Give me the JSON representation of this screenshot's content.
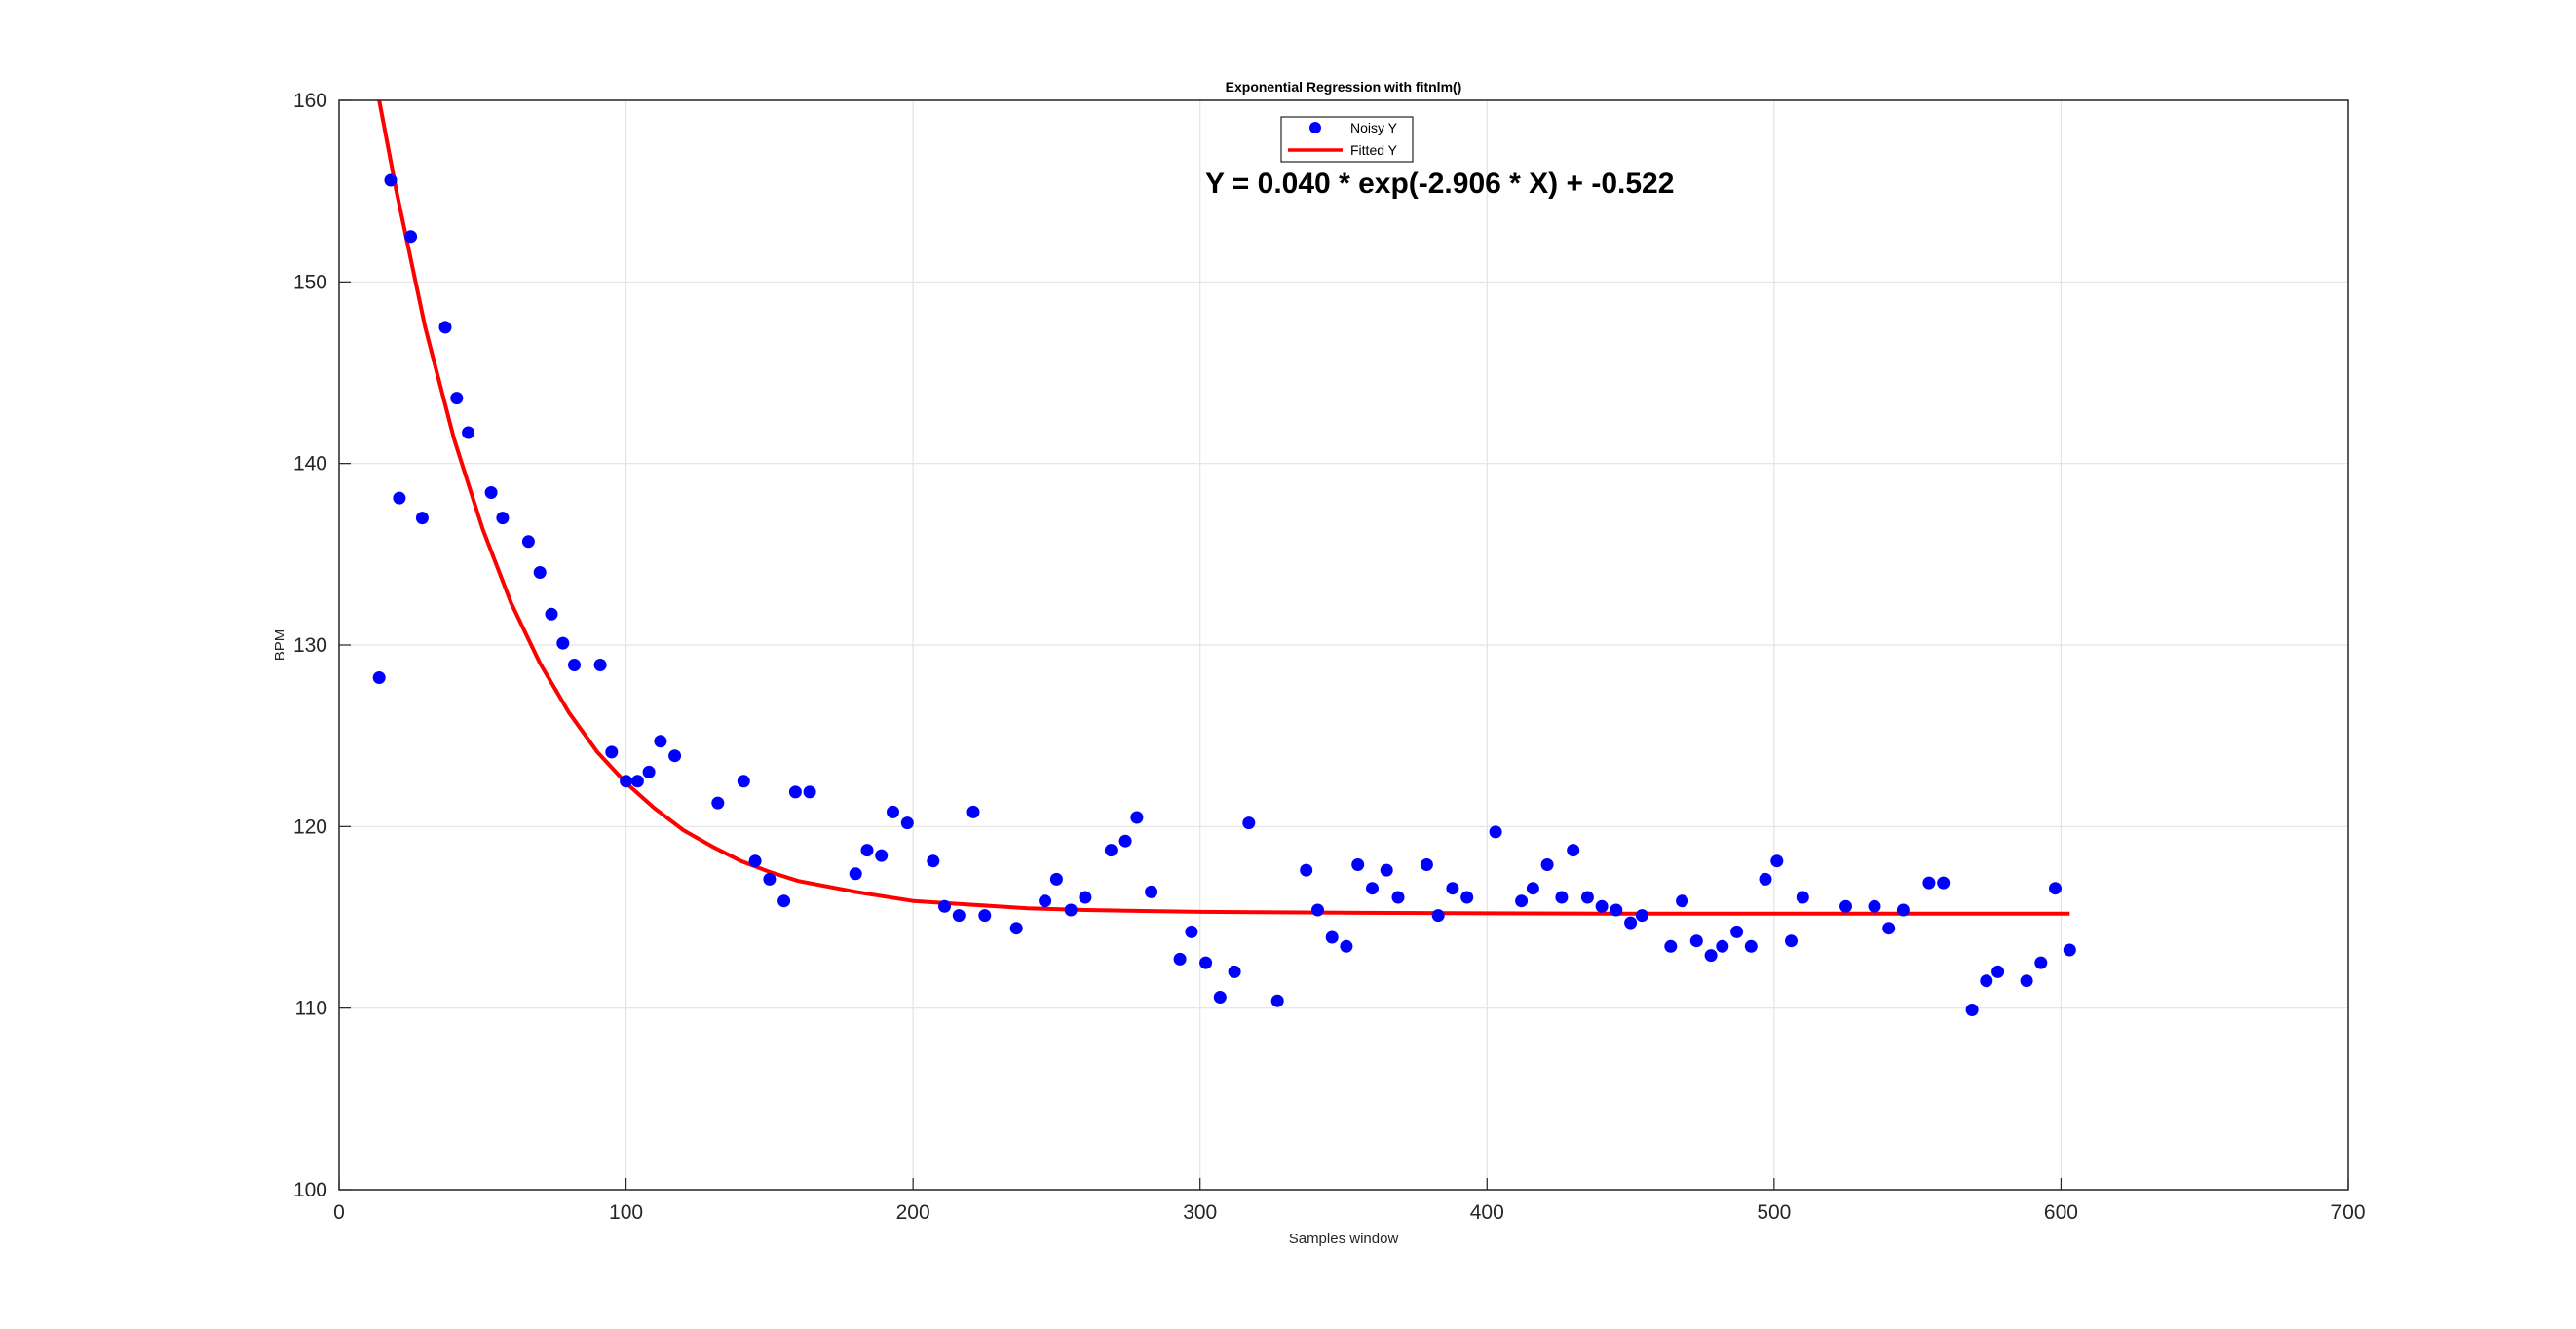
{
  "chart_data": {
    "type": "scatter",
    "title": "Exponential Regression with fitnlm()",
    "xlabel": "Samples window",
    "ylabel": "BPM",
    "xlim": [
      0,
      700
    ],
    "ylim": [
      100,
      160
    ],
    "xticks": [
      "0",
      "100",
      "200",
      "300",
      "400",
      "500",
      "600",
      "700"
    ],
    "yticks": [
      "100",
      "110",
      "120",
      "130",
      "140",
      "150",
      "160"
    ],
    "grid": true,
    "legend_position": "top-center",
    "annotation": "Y = 0.040 * exp(-2.906 * X) + -0.522",
    "series": [
      {
        "name": "Noisy Y",
        "kind": "scatter",
        "color": "#0000ff",
        "points": [
          [
            14,
            128.2
          ],
          [
            18,
            155.6
          ],
          [
            21,
            138.1
          ],
          [
            25,
            152.5
          ],
          [
            29,
            137.0
          ],
          [
            37,
            147.5
          ],
          [
            41,
            143.6
          ],
          [
            45,
            141.7
          ],
          [
            53,
            138.4
          ],
          [
            57,
            137.0
          ],
          [
            66,
            135.7
          ],
          [
            70,
            134.0
          ],
          [
            74,
            131.7
          ],
          [
            78,
            130.1
          ],
          [
            82,
            128.9
          ],
          [
            91,
            128.9
          ],
          [
            95,
            124.1
          ],
          [
            100,
            122.5
          ],
          [
            104,
            122.5
          ],
          [
            108,
            123.0
          ],
          [
            112,
            124.7
          ],
          [
            117,
            123.9
          ],
          [
            132,
            121.3
          ],
          [
            141,
            122.5
          ],
          [
            145,
            118.1
          ],
          [
            150,
            117.1
          ],
          [
            155,
            115.9
          ],
          [
            159,
            121.9
          ],
          [
            164,
            121.9
          ],
          [
            180,
            117.4
          ],
          [
            184,
            118.7
          ],
          [
            189,
            118.4
          ],
          [
            193,
            120.8
          ],
          [
            198,
            120.2
          ],
          [
            207,
            118.1
          ],
          [
            211,
            115.6
          ],
          [
            216,
            115.1
          ],
          [
            221,
            120.8
          ],
          [
            225,
            115.1
          ],
          [
            236,
            114.4
          ],
          [
            246,
            115.9
          ],
          [
            250,
            117.1
          ],
          [
            255,
            115.4
          ],
          [
            260,
            116.1
          ],
          [
            269,
            118.7
          ],
          [
            274,
            119.2
          ],
          [
            278,
            120.5
          ],
          [
            283,
            116.4
          ],
          [
            293,
            112.7
          ],
          [
            297,
            114.2
          ],
          [
            302,
            112.5
          ],
          [
            307,
            110.6
          ],
          [
            312,
            112.0
          ],
          [
            317,
            120.2
          ],
          [
            327,
            110.4
          ],
          [
            337,
            117.6
          ],
          [
            341,
            115.4
          ],
          [
            346,
            113.9
          ],
          [
            351,
            113.4
          ],
          [
            355,
            117.9
          ],
          [
            360,
            116.6
          ],
          [
            365,
            117.6
          ],
          [
            369,
            116.1
          ],
          [
            379,
            117.9
          ],
          [
            383,
            115.1
          ],
          [
            388,
            116.6
          ],
          [
            393,
            116.1
          ],
          [
            403,
            119.7
          ],
          [
            412,
            115.9
          ],
          [
            416,
            116.6
          ],
          [
            421,
            117.9
          ],
          [
            426,
            116.1
          ],
          [
            430,
            118.7
          ],
          [
            435,
            116.1
          ],
          [
            440,
            115.6
          ],
          [
            445,
            115.4
          ],
          [
            450,
            114.7
          ],
          [
            454,
            115.1
          ],
          [
            464,
            113.4
          ],
          [
            468,
            115.9
          ],
          [
            473,
            113.7
          ],
          [
            478,
            112.9
          ],
          [
            482,
            113.4
          ],
          [
            487,
            114.2
          ],
          [
            492,
            113.4
          ],
          [
            497,
            117.1
          ],
          [
            501,
            118.1
          ],
          [
            506,
            113.7
          ],
          [
            510,
            116.1
          ],
          [
            525,
            115.6
          ],
          [
            535,
            115.6
          ],
          [
            540,
            114.4
          ],
          [
            545,
            115.4
          ],
          [
            554,
            116.9
          ],
          [
            559,
            116.9
          ],
          [
            569,
            109.9
          ],
          [
            574,
            111.5
          ],
          [
            578,
            112.0
          ],
          [
            588,
            111.5
          ],
          [
            593,
            112.5
          ],
          [
            598,
            116.6
          ],
          [
            603,
            113.2
          ]
        ]
      },
      {
        "name": "Fitted Y",
        "kind": "line",
        "color": "#ff0000",
        "points": [
          [
            14,
            160.0
          ],
          [
            20,
            155.0
          ],
          [
            30,
            147.5
          ],
          [
            40,
            141.4
          ],
          [
            50,
            136.4
          ],
          [
            60,
            132.3
          ],
          [
            70,
            129.0
          ],
          [
            80,
            126.3
          ],
          [
            90,
            124.1
          ],
          [
            100,
            122.4
          ],
          [
            110,
            121.0
          ],
          [
            120,
            119.8
          ],
          [
            130,
            118.9
          ],
          [
            140,
            118.1
          ],
          [
            150,
            117.5
          ],
          [
            160,
            117.0
          ],
          [
            180,
            116.4
          ],
          [
            200,
            115.9
          ],
          [
            220,
            115.7
          ],
          [
            240,
            115.5
          ],
          [
            260,
            115.4
          ],
          [
            280,
            115.35
          ],
          [
            300,
            115.3
          ],
          [
            350,
            115.25
          ],
          [
            400,
            115.22
          ],
          [
            450,
            115.2
          ],
          [
            500,
            115.2
          ],
          [
            550,
            115.2
          ],
          [
            603,
            115.2
          ]
        ]
      }
    ]
  }
}
